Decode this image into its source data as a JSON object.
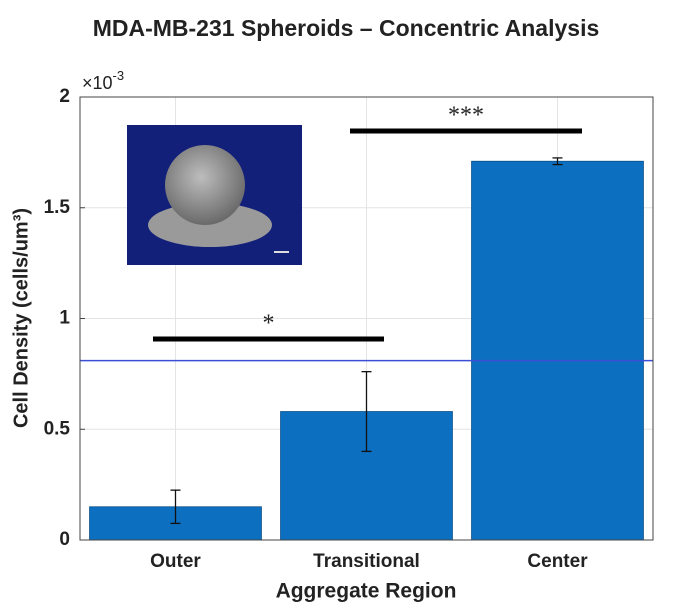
{
  "chart_data": {
    "type": "bar",
    "title": "MDA-MB-231 Spheroids – Concentric Analysis",
    "x_label": "Aggregate Region",
    "y_label": "Cell Density (cells/um³)",
    "y_multiplier": {
      "base": "×10",
      "exponent": "-3"
    },
    "categories": [
      "Outer",
      "Transitional",
      "Center"
    ],
    "values": [
      0.15,
      0.58,
      1.71
    ],
    "errors": [
      0.075,
      0.18,
      0.015
    ],
    "color": "#0c6fc0",
    "ylim": [
      0,
      2
    ],
    "yticks": [
      0,
      0.5,
      1,
      1.5,
      2
    ],
    "grid": true,
    "reference_line": {
      "value": 0.81,
      "color": "#3b4fd6"
    },
    "annotations": [
      {
        "text": "*"
      },
      {
        "text": "***"
      }
    ]
  }
}
